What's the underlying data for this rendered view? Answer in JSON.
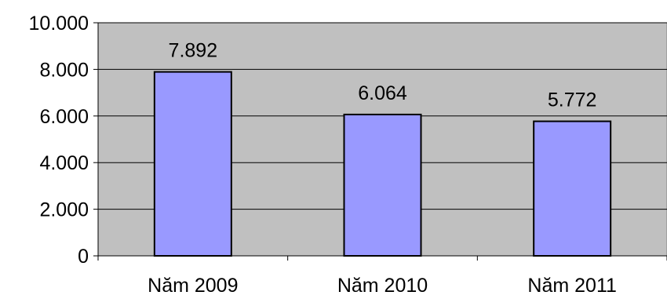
{
  "chart_data": {
    "type": "bar",
    "categories": [
      "Năm 2009",
      "Năm 2010",
      "Năm 2011"
    ],
    "values": [
      7892,
      6064,
      5772
    ],
    "value_labels": [
      "7.892",
      "6.064",
      "5.772"
    ],
    "y_ticks": [
      0,
      2000,
      4000,
      6000,
      8000,
      10000
    ],
    "y_tick_labels": [
      "0",
      "2.000",
      "4.000",
      "6.000",
      "8.000",
      "10.000"
    ],
    "ylim": [
      0,
      10000
    ],
    "grid": true,
    "legend": "none",
    "colors": {
      "plot_background": "#c0c0c0",
      "bar_fill": "#9999ff",
      "bar_stroke": "#000000",
      "gridline": "#000000"
    }
  }
}
